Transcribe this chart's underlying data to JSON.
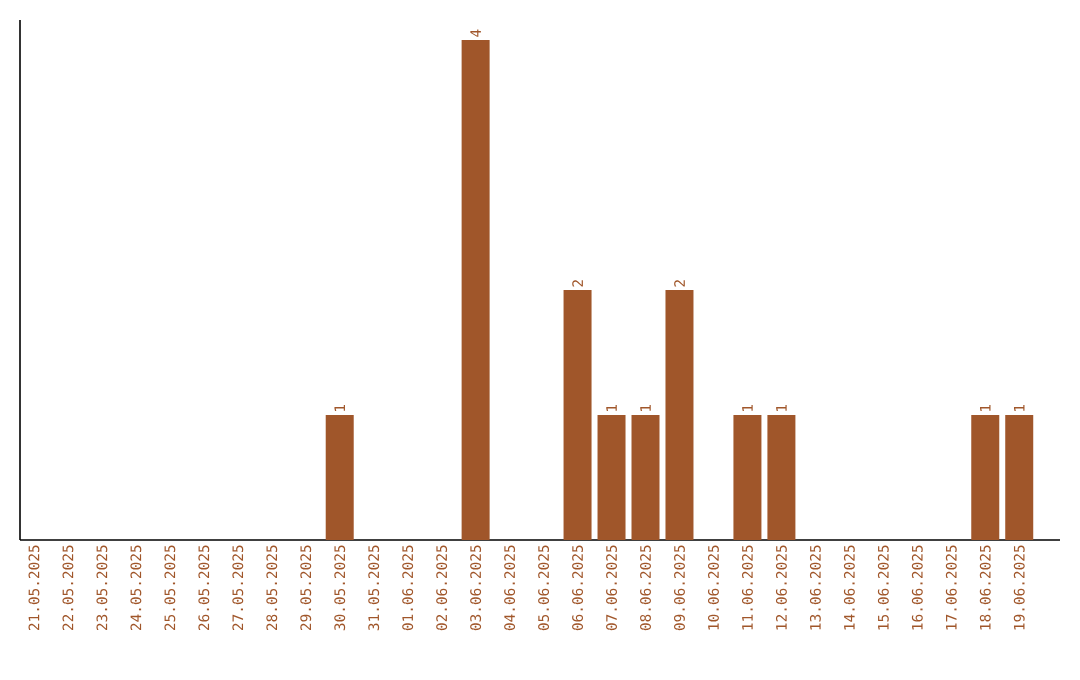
{
  "chart_data": {
    "type": "bar",
    "categories": [
      "21.05.2025",
      "22.05.2025",
      "23.05.2025",
      "24.05.2025",
      "25.05.2025",
      "26.05.2025",
      "27.05.2025",
      "28.05.2025",
      "29.05.2025",
      "30.05.2025",
      "31.05.2025",
      "01.06.2025",
      "02.06.2025",
      "03.06.2025",
      "04.06.2025",
      "05.06.2025",
      "06.06.2025",
      "07.06.2025",
      "08.06.2025",
      "09.06.2025",
      "10.06.2025",
      "11.06.2025",
      "12.06.2025",
      "13.06.2025",
      "14.06.2025",
      "15.06.2025",
      "16.06.2025",
      "17.06.2025",
      "18.06.2025",
      "19.06.2025"
    ],
    "values": [
      0,
      0,
      0,
      0,
      0,
      0,
      0,
      0,
      0,
      1,
      0,
      0,
      0,
      4,
      0,
      0,
      2,
      1,
      1,
      2,
      0,
      1,
      1,
      0,
      0,
      0,
      0,
      0,
      1,
      1
    ],
    "value_labels": [
      null,
      null,
      null,
      null,
      null,
      null,
      null,
      null,
      null,
      "1",
      null,
      null,
      null,
      "4",
      null,
      null,
      "2",
      "1",
      "1",
      "2",
      null,
      "1",
      "1",
      null,
      null,
      null,
      null,
      null,
      "1",
      "1"
    ],
    "color": "#a0562a",
    "ylim": [
      0,
      4.16
    ],
    "tick_labels": "x"
  }
}
